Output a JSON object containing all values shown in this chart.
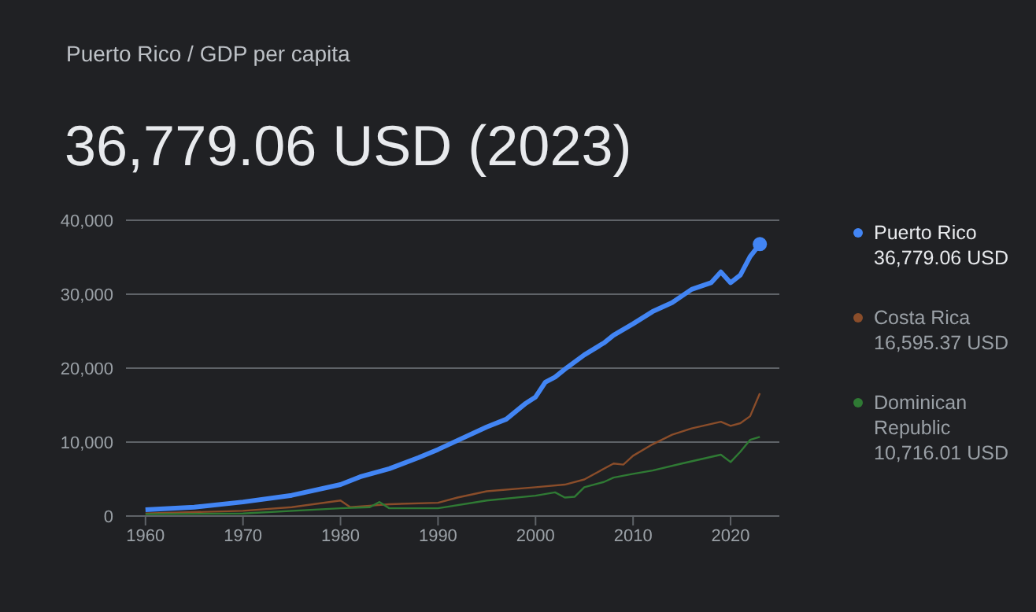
{
  "chart_data": {
    "type": "line",
    "subtitle": "Puerto Rico / GDP per capita",
    "title": "36,779.06 USD (2023)",
    "xlim": [
      1958,
      2025
    ],
    "xticks": [
      1960,
      1970,
      1980,
      1990,
      2000,
      2010,
      2020
    ],
    "ylim": [
      0,
      40000
    ],
    "yticks": [
      0,
      {
        "value": 10000,
        "label": "10,000"
      },
      {
        "value": 20000,
        "label": "20,000"
      },
      {
        "value": 30000,
        "label": "30,000"
      },
      {
        "value": 40000,
        "label": "40,000"
      }
    ],
    "grid": "y",
    "legend": "right",
    "marker": "none",
    "line_style": "solid",
    "series": [
      {
        "name": "Puerto Rico",
        "color": "#4285f4",
        "x": [
          1960,
          1965,
          1970,
          1975,
          1980,
          1982,
          1985,
          1988,
          1990,
          1995,
          1997,
          1999,
          2000,
          2001,
          2002,
          2003,
          2005,
          2007,
          2008,
          2010,
          2012,
          2014,
          2016,
          2018,
          2019,
          2020,
          2021,
          2022,
          2023
        ],
        "values": [
          850,
          1200,
          1900,
          2800,
          4250,
          5300,
          6400,
          7900,
          9000,
          12050,
          13100,
          15250,
          16100,
          18100,
          18800,
          19850,
          21800,
          23400,
          24450,
          26000,
          27650,
          28850,
          30650,
          31550,
          33000,
          31550,
          32600,
          35100,
          36779.06
        ]
      },
      {
        "name": "Costa Rica",
        "color": "#8a4d2a",
        "x": [
          1960,
          1970,
          1975,
          1980,
          1981,
          1983,
          1985,
          1990,
          1992,
          1995,
          2000,
          2003,
          2005,
          2008,
          2009,
          2010,
          2012,
          2014,
          2016,
          2019,
          2020,
          2021,
          2022,
          2023
        ],
        "values": [
          350,
          700,
          1200,
          2100,
          1200,
          1400,
          1600,
          1800,
          2500,
          3350,
          3900,
          4250,
          4950,
          7100,
          6950,
          8150,
          9700,
          11000,
          11850,
          12750,
          12200,
          12550,
          13500,
          16595.37
        ]
      },
      {
        "name": "Dominican Republic",
        "color": "#2f7a34",
        "x": [
          1960,
          1970,
          1980,
          1983,
          1984,
          1985,
          1990,
          1995,
          2000,
          2002,
          2003,
          2004,
          2005,
          2007,
          2008,
          2010,
          2012,
          2015,
          2019,
          2020,
          2021,
          2022,
          2023
        ],
        "values": [
          250,
          350,
          1050,
          1200,
          1900,
          1050,
          1050,
          2100,
          2750,
          3200,
          2500,
          2600,
          3900,
          4600,
          5200,
          5700,
          6150,
          7100,
          8300,
          7300,
          8700,
          10300,
          10716.01
        ]
      },
      {
        "type": "scatter",
        "marker": "circle",
        "color": "#4285f4",
        "x": [
          2023
        ],
        "values": [
          36779.06
        ]
      }
    ],
    "annotations": [
      "36,779.06 USD",
      "16,595.37 USD",
      "10,716.01 USD"
    ]
  }
}
